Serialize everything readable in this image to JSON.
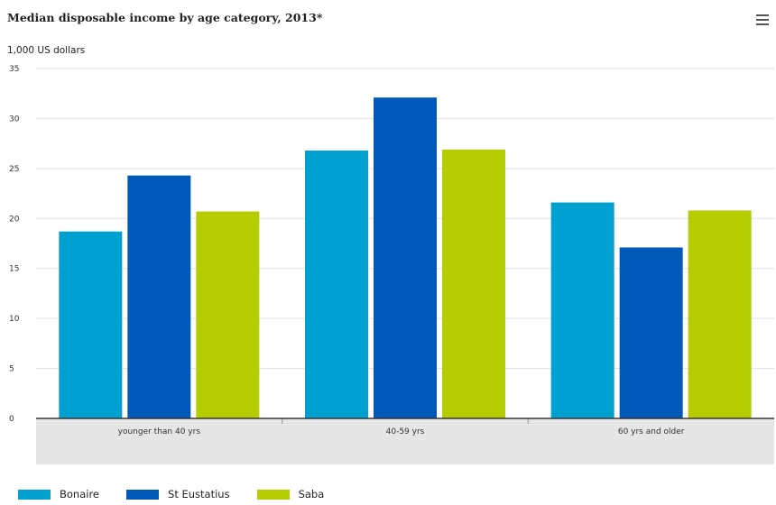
{
  "chart_data": {
    "type": "bar",
    "title": "Median disposable income by age category, 2013*",
    "ylabel": "1,000 US dollars",
    "xlabel": "",
    "categories": [
      "younger than 40 yrs",
      "40-59 yrs",
      "60 yrs and older"
    ],
    "series": [
      {
        "name": "Bonaire",
        "color": "#00a0d0",
        "values": [
          18.7,
          26.8,
          21.6
        ]
      },
      {
        "name": "St Eustatius",
        "color": "#0058b8",
        "values": [
          24.3,
          32.1,
          17.1
        ]
      },
      {
        "name": "Saba",
        "color": "#b4cc00",
        "values": [
          20.7,
          26.9,
          20.8
        ]
      }
    ],
    "ylim": [
      0,
      35
    ],
    "yticks": [
      "0",
      "5",
      "10",
      "15",
      "20",
      "25",
      "30",
      "35"
    ],
    "grid": true,
    "legend_position": "bottom-left"
  },
  "menu_icon": "hamburger-menu-icon"
}
